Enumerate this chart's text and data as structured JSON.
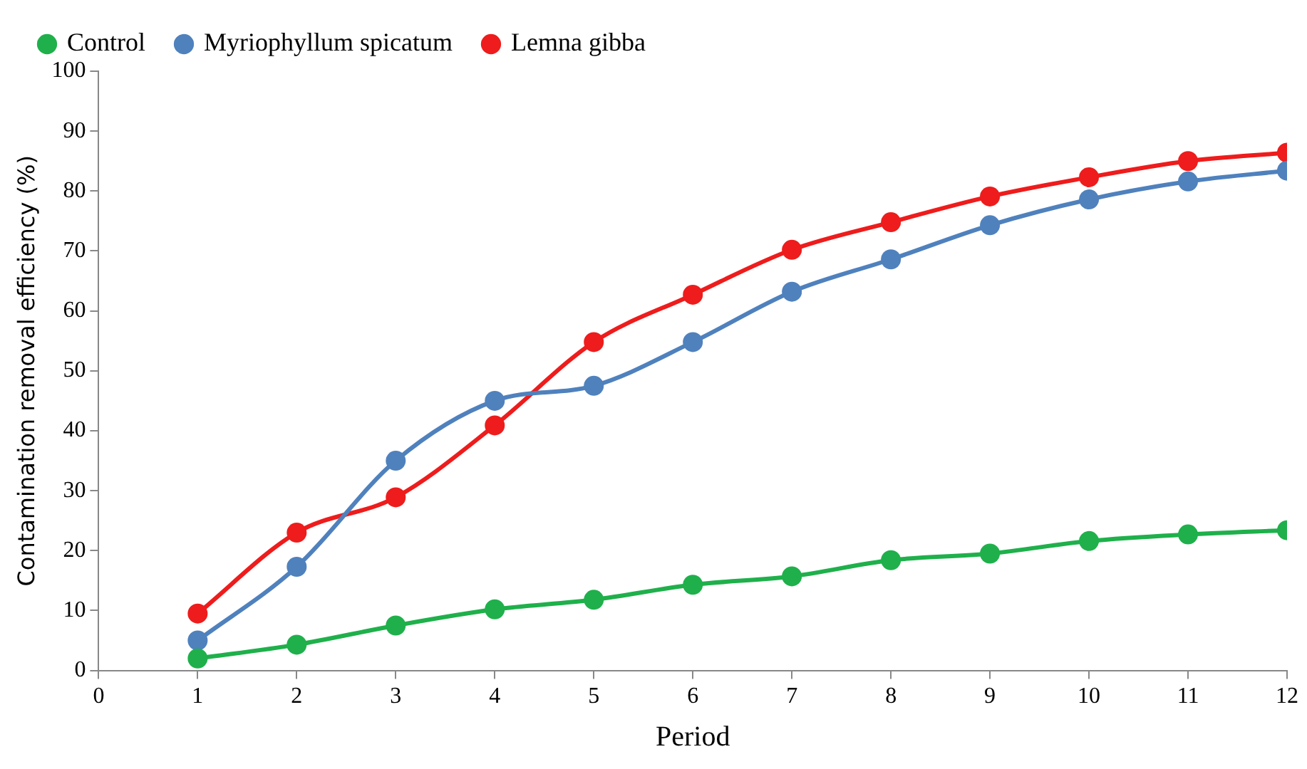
{
  "chart_data": {
    "type": "line",
    "xlabel": "Period",
    "ylabel": "Contamination removal efficiency (%)",
    "x": [
      1,
      2,
      3,
      4,
      5,
      6,
      7,
      8,
      9,
      10,
      11,
      12
    ],
    "xlim": [
      0,
      12
    ],
    "xticks": [
      0,
      1,
      2,
      3,
      4,
      5,
      6,
      7,
      8,
      9,
      10,
      11,
      12
    ],
    "ylim": [
      0,
      100
    ],
    "yticks": [
      0,
      10,
      20,
      30,
      40,
      50,
      60,
      70,
      80,
      90,
      100
    ],
    "grid": false,
    "legend": "top left",
    "marker": "circle",
    "line_style": "solid",
    "series": [
      {
        "name": "Control",
        "color": "#1fb04b",
        "values": [
          2.0,
          4.3,
          7.5,
          10.2,
          11.8,
          14.3,
          15.7,
          18.4,
          19.5,
          21.6,
          22.7,
          23.4
        ]
      },
      {
        "name": "Myriophyllum spicatum",
        "color": "#4f81bd",
        "values": [
          5.0,
          17.3,
          35,
          45,
          47.5,
          54.8,
          63.2,
          68.6,
          74.3,
          78.6,
          81.6,
          83.4
        ]
      },
      {
        "name": "Lemna gibba",
        "color": "#ee1c1c",
        "values": [
          9.5,
          23,
          28.9,
          40.9,
          54.8,
          62.7,
          70.2,
          74.8,
          79.1,
          82.3,
          85,
          86.4
        ]
      }
    ]
  }
}
